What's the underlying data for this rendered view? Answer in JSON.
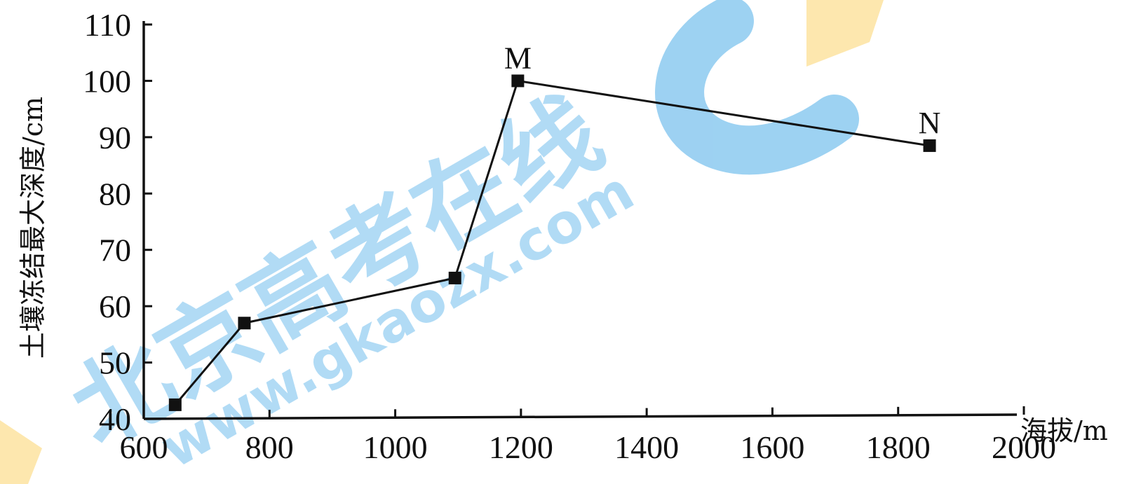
{
  "chart_data": {
    "type": "line",
    "title": "",
    "xlabel": "海拔/m",
    "ylabel": "土壤冻结最大深度/cm",
    "xlim": [
      600,
      2000
    ],
    "ylim": [
      40,
      110
    ],
    "x_ticks": [
      "600",
      "800",
      "1000",
      "1200",
      "1400",
      "1600",
      "1800",
      "2000"
    ],
    "y_ticks": [
      "40",
      "50",
      "60",
      "70",
      "80",
      "90",
      "100",
      "110"
    ],
    "grid": false,
    "series": [
      {
        "points": [
          {
            "x": 650,
            "y": 42.5,
            "label": ""
          },
          {
            "x": 760,
            "y": 57,
            "label": ""
          },
          {
            "x": 1095,
            "y": 65,
            "label": ""
          },
          {
            "x": 1195,
            "y": 100,
            "label": "M"
          },
          {
            "x": 1850,
            "y": 88.5,
            "label": "N"
          }
        ]
      }
    ]
  },
  "watermark": {
    "site_name": "北京高考在线",
    "url": "www.gkaozx.com",
    "colors": {
      "blue": "#8ccaf0",
      "orange": "#fde3a0"
    }
  }
}
